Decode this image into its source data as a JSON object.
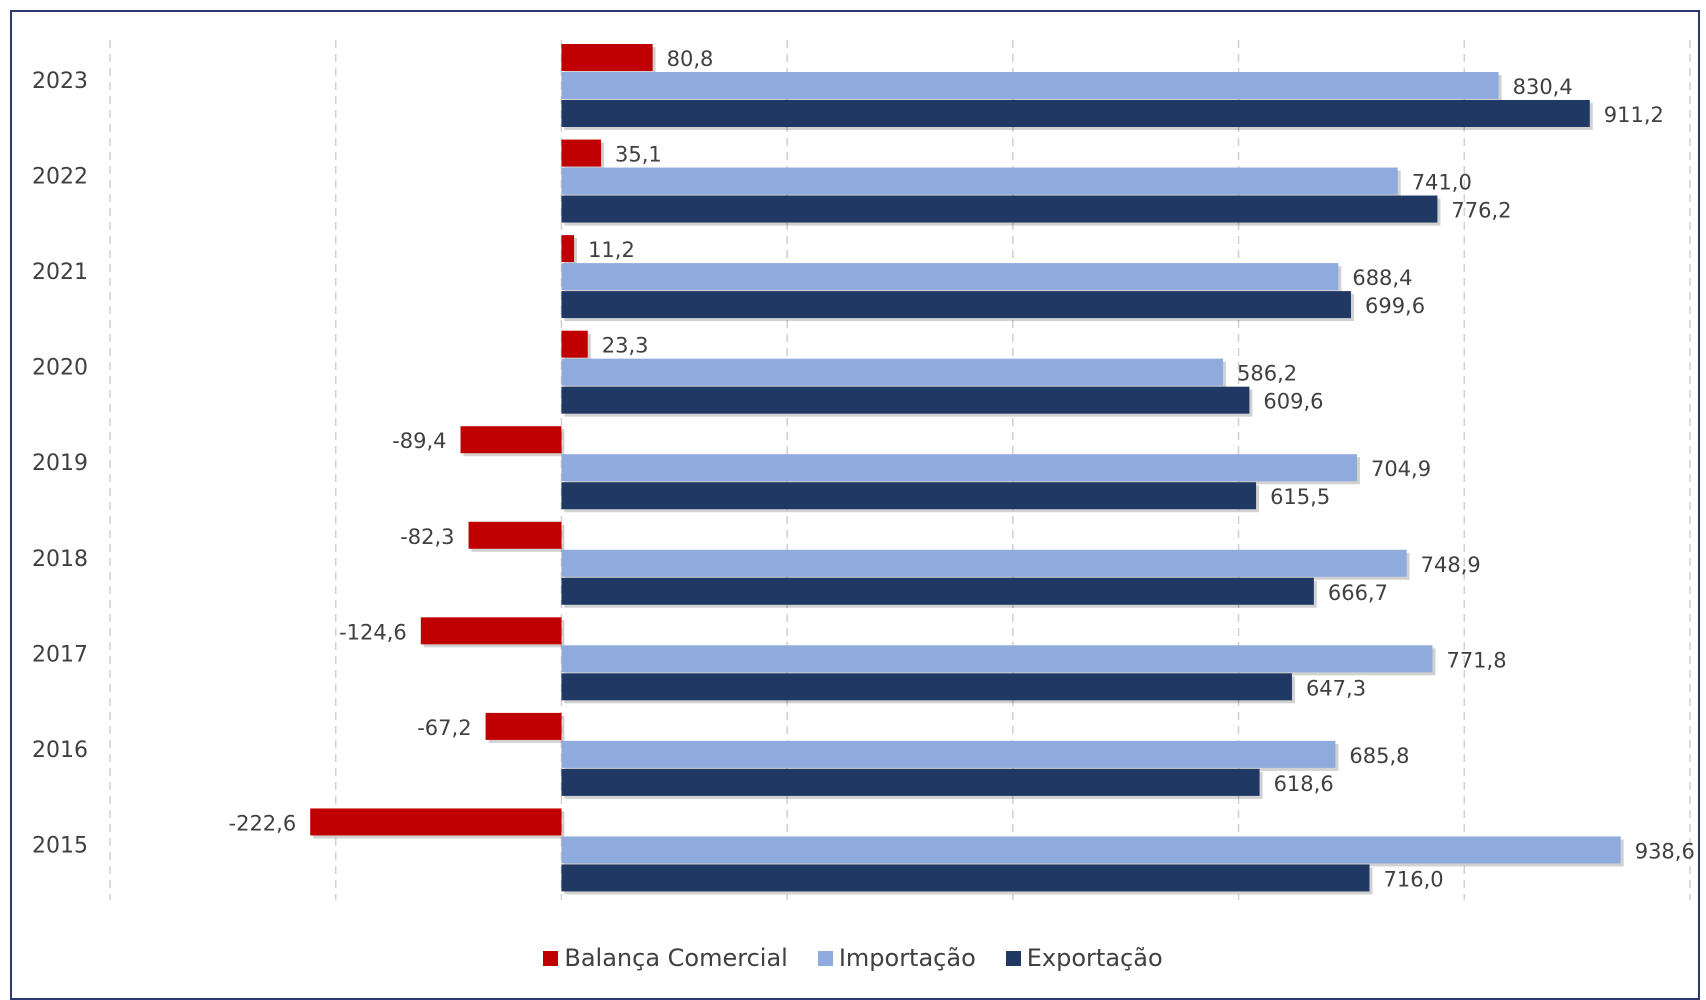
{
  "chart_data": {
    "type": "bar",
    "orientation": "horizontal",
    "categories": [
      "2023",
      "2022",
      "2021",
      "2020",
      "2019",
      "2018",
      "2017",
      "2016",
      "2015"
    ],
    "series": [
      {
        "name": "Balança Comercial",
        "color": "#c00000",
        "values": [
          80.8,
          35.1,
          11.2,
          23.3,
          -89.4,
          -82.3,
          -124.6,
          -67.2,
          -222.6
        ],
        "labels": [
          "80,8",
          "35,1",
          "11,2",
          "23,3",
          "-89,4",
          "-82,3",
          "-124,6",
          "-67,2",
          "-222,6"
        ]
      },
      {
        "name": "Importação",
        "color": "#8faadc",
        "values": [
          830.4,
          741.0,
          688.4,
          586.2,
          704.9,
          748.9,
          771.8,
          685.8,
          938.6
        ],
        "labels": [
          "830,4",
          "741,0",
          "688,4",
          "586,2",
          "704,9",
          "748,9",
          "771,8",
          "685,8",
          "938,6"
        ]
      },
      {
        "name": "Exportação",
        "color": "#1f3864",
        "values": [
          911.2,
          776.2,
          699.6,
          609.6,
          615.5,
          666.7,
          647.3,
          618.6,
          716.0
        ],
        "labels": [
          "911,2",
          "776,2",
          "699,6",
          "609,6",
          "615,5",
          "666,7",
          "647,3",
          "618,6",
          "716,0"
        ]
      }
    ],
    "xlim": [
      -400,
      1000
    ],
    "grid": true,
    "legend_position": "bottom"
  }
}
